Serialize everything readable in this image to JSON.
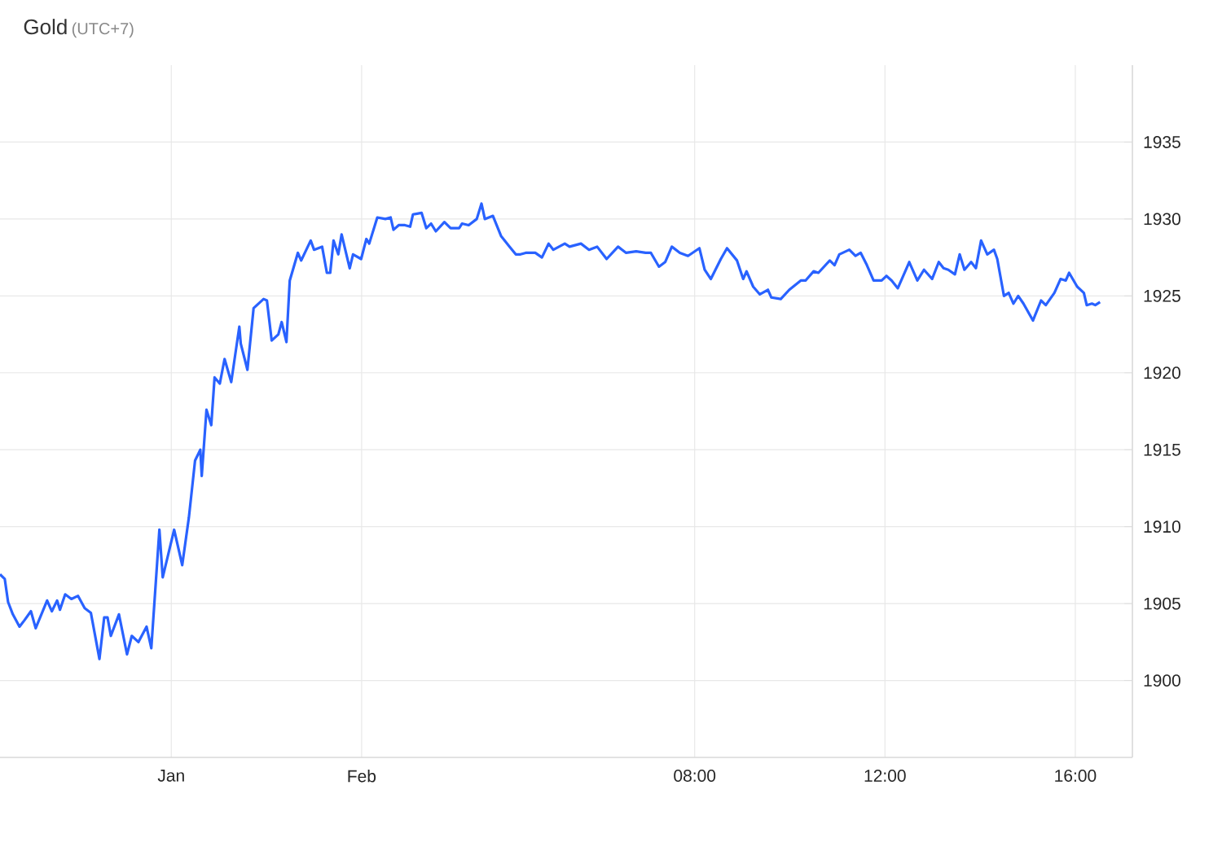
{
  "chart_data": {
    "type": "line",
    "title": "Gold",
    "subtitle": "(UTC+7)",
    "x": [
      -6.6,
      -6.5,
      -6.43,
      -6.33,
      -6.19,
      -6.09,
      -5.95,
      -5.85,
      -5.61,
      -5.51,
      -5.4,
      -5.34,
      -5.23,
      -5.1,
      -4.96,
      -4.82,
      -4.69,
      -4.51,
      -4.41,
      -4.34,
      -4.27,
      -4.1,
      -3.93,
      -3.83,
      -3.69,
      -3.52,
      -3.42,
      -3.25,
      -3.18,
      -2.94,
      -2.77,
      -2.63,
      -2.5,
      -2.39,
      -2.36,
      -2.26,
      -2.16,
      -2.09,
      -1.98,
      -1.88,
      -1.74,
      -1.57,
      -1.54,
      -1.4,
      -1.27,
      -1.06,
      -0.99,
      -0.89,
      -0.75,
      -0.68,
      -0.58,
      -0.51,
      -0.34,
      -0.27,
      -0.07,
      0.0,
      0.17,
      0.27,
      0.34,
      0.41,
      0.51,
      0.58,
      0.75,
      0.82,
      0.99,
      1.1,
      1.16,
      1.33,
      1.5,
      1.61,
      1.67,
      1.78,
      1.91,
      2.02,
      2.08,
      2.26,
      2.36,
      2.46,
      2.56,
      2.74,
      2.87,
      3.05,
      3.11,
      3.25,
      3.42,
      3.52,
      3.59,
      3.76,
      3.93,
      4.11,
      4.24,
      4.34,
      4.45,
      4.65,
      4.79,
      4.93,
      5.03,
      5.27,
      5.37,
      5.61,
      5.78,
      5.95,
      6.15,
      6.39,
      6.56,
      6.77,
      6.97,
      7.08,
      7.25,
      7.38,
      7.52,
      7.69,
      7.86,
      8.1,
      8.21,
      8.34,
      8.55,
      8.68,
      8.89,
      9.02,
      9.09,
      9.23,
      9.37,
      9.54,
      9.61,
      9.81,
      9.99,
      10.23,
      10.33,
      10.5,
      10.6,
      10.84,
      10.94,
      11.04,
      11.25,
      11.38,
      11.49,
      11.62,
      11.76,
      11.93,
      12.03,
      12.14,
      12.27,
      12.51,
      12.68,
      12.82,
      12.99,
      13.13,
      13.23,
      13.33,
      13.47,
      13.57,
      13.67,
      13.81,
      13.91,
      14.02,
      14.15,
      14.29,
      14.36,
      14.5,
      14.6,
      14.7,
      14.8,
      14.91,
      15.11,
      15.28,
      15.38,
      15.56,
      15.69,
      15.8,
      15.87,
      16.04,
      16.18,
      16.24,
      16.35,
      16.42,
      16.52
    ],
    "values": [
      1906.9,
      1906.6,
      1905.1,
      1904.3,
      1903.5,
      1903.9,
      1904.5,
      1903.4,
      1905.2,
      1904.5,
      1905.2,
      1904.6,
      1905.6,
      1905.3,
      1905.5,
      1904.7,
      1904.4,
      1901.4,
      1904.1,
      1904.1,
      1902.9,
      1904.3,
      1901.7,
      1902.9,
      1902.5,
      1903.5,
      1902.1,
      1909.8,
      1906.7,
      1909.8,
      1907.5,
      1910.6,
      1914.3,
      1915.0,
      1913.3,
      1917.6,
      1916.6,
      1919.7,
      1919.3,
      1920.9,
      1919.4,
      1923.0,
      1921.9,
      1920.2,
      1924.2,
      1924.8,
      1924.7,
      1922.1,
      1922.5,
      1923.3,
      1922.0,
      1926.0,
      1927.8,
      1927.3,
      1928.6,
      1928.0,
      1928.2,
      1926.5,
      1926.5,
      1928.6,
      1927.7,
      1929.0,
      1926.8,
      1927.7,
      1927.4,
      1928.7,
      1928.4,
      1930.1,
      1930.0,
      1930.1,
      1929.3,
      1929.6,
      1929.6,
      1929.5,
      1930.3,
      1930.4,
      1929.4,
      1929.7,
      1929.2,
      1929.8,
      1929.4,
      1929.4,
      1929.7,
      1929.6,
      1930.0,
      1931.0,
      1930.0,
      1930.2,
      1928.9,
      1928.2,
      1927.7,
      1927.7,
      1927.8,
      1927.8,
      1927.5,
      1928.4,
      1928.0,
      1928.4,
      1928.2,
      1928.4,
      1928.0,
      1928.2,
      1927.4,
      1928.2,
      1927.8,
      1927.9,
      1927.8,
      1927.8,
      1926.9,
      1927.2,
      1928.2,
      1927.8,
      1927.6,
      1928.1,
      1926.7,
      1926.1,
      1927.4,
      1928.1,
      1927.3,
      1926.1,
      1926.6,
      1925.6,
      1925.1,
      1925.4,
      1924.9,
      1924.8,
      1925.4,
      1926.0,
      1926.0,
      1926.6,
      1926.5,
      1927.3,
      1927.0,
      1927.7,
      1928.0,
      1927.6,
      1927.8,
      1927.0,
      1926.0,
      1926.0,
      1926.3,
      1926.0,
      1925.5,
      1927.2,
      1926.0,
      1926.7,
      1926.1,
      1927.2,
      1926.8,
      1926.7,
      1926.4,
      1927.7,
      1926.7,
      1927.2,
      1926.8,
      1928.6,
      1927.7,
      1928.0,
      1927.4,
      1925.0,
      1925.2,
      1924.5,
      1925.0,
      1924.5,
      1923.4,
      1924.7,
      1924.4,
      1925.2,
      1926.1,
      1926.0,
      1926.5,
      1925.6,
      1925.2,
      1924.4,
      1924.5,
      1924.4,
      1924.6
    ],
    "color": "#2962ff",
    "xlim": [
      -6.6,
      17.2
    ],
    "xticks": [
      {
        "value": -3,
        "label": "Jan"
      },
      {
        "value": 1,
        "label": "Feb"
      },
      {
        "value": 8,
        "label": "08:00"
      },
      {
        "value": 12,
        "label": "12:00"
      },
      {
        "value": 16,
        "label": "16:00"
      }
    ],
    "ylim": [
      1895,
      1940
    ],
    "yticks": [
      1900,
      1905,
      1910,
      1915,
      1920,
      1925,
      1930,
      1935
    ],
    "grid": true
  }
}
